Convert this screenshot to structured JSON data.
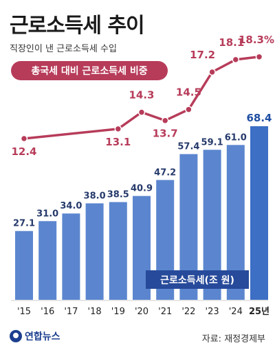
{
  "title": "근로소득세 추이",
  "subtitle": "직장인이 낸 근로소득세 수입",
  "source": "자료: 재정경제부",
  "logo_text": "연합뉴스",
  "colors": {
    "bar": "#5b86cf",
    "bar_last": "#3d6fc4",
    "line": "#b73c5a",
    "bar_label": "#263a6b",
    "bar_label_last": "#1f4fa3",
    "line_label": "#b73c5a",
    "legend_box": "#274a9a"
  },
  "chart_data": {
    "type": "bar+line",
    "categories": [
      "'15",
      "'16",
      "'17",
      "'18",
      "'19",
      "'20",
      "'21",
      "'22",
      "'23",
      "'24",
      "25년"
    ],
    "series": [
      {
        "name": "근로소득세(조 원)",
        "type": "bar",
        "values": [
          27.1,
          31.0,
          34.0,
          38.0,
          38.5,
          40.9,
          47.2,
          57.4,
          59.1,
          61.0,
          68.4
        ]
      },
      {
        "name": "총국세 대비 근로소득세 비중",
        "type": "line",
        "unit": "%",
        "values": [
          12.4,
          null,
          null,
          null,
          13.1,
          14.3,
          13.7,
          14.5,
          17.2,
          18.1,
          18.3
        ],
        "labels": [
          "12.4",
          null,
          null,
          null,
          "13.1",
          "14.3",
          "13.7",
          "14.5",
          "17.2",
          "18.1",
          "18.3%"
        ]
      }
    ],
    "bar_labels": [
      "27.1",
      "31.0",
      "34.0",
      "38.0",
      "38.5",
      "40.9",
      "47.2",
      "57.4",
      "59.1",
      "61.0",
      "68.4"
    ],
    "grid": false
  }
}
